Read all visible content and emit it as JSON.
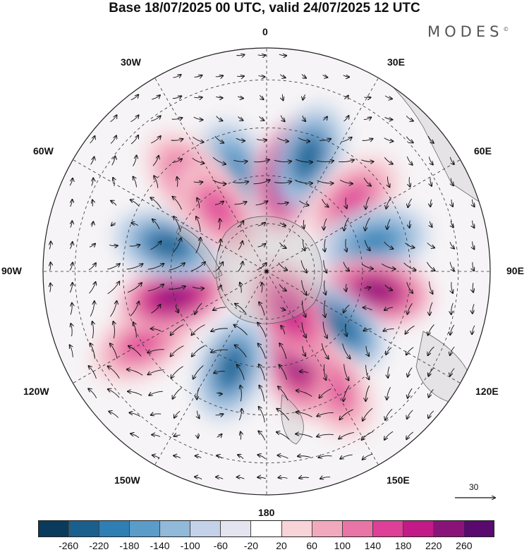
{
  "title": "Base 18/07/2025 00 UTC, valid 24/07/2025 12 UTC",
  "logo": "MODES",
  "logo_mark": "©",
  "longitude_labels": [
    "0",
    "30E",
    "60E",
    "90E",
    "120E",
    "150E",
    "180",
    "150W",
    "120W",
    "90W",
    "60W",
    "30W"
  ],
  "reference_vector": {
    "label": "30"
  },
  "colorbar": {
    "ticks": [
      "-260",
      "-220",
      "-180",
      "-140",
      "-100",
      "-60",
      "-20",
      "20",
      "60",
      "100",
      "140",
      "180",
      "220",
      "260"
    ],
    "colors": [
      "#0a3a5c",
      "#1b5f8c",
      "#2f7fb5",
      "#5b9cc9",
      "#90b9da",
      "#c3d2e8",
      "#e4e4f0",
      "#ffffff",
      "#f8d3d8",
      "#f3a9bd",
      "#e974a6",
      "#de3f97",
      "#c21a86",
      "#8a137a",
      "#5a0a6e"
    ]
  },
  "anomaly_centers": [
    {
      "lon": -18,
      "lat": -58,
      "value": -200
    },
    {
      "lon": 12,
      "lat": -60,
      "value": 240
    },
    {
      "lon": 20,
      "lat": -52,
      "value": -230
    },
    {
      "lon": 50,
      "lat": -55,
      "value": 160
    },
    {
      "lon": 75,
      "lat": -55,
      "value": -190
    },
    {
      "lon": 100,
      "lat": -55,
      "value": 230
    },
    {
      "lon": 128,
      "lat": -62,
      "value": -240
    },
    {
      "lon": 150,
      "lat": -48,
      "value": 150
    },
    {
      "lon": 162,
      "lat": -60,
      "value": 230
    },
    {
      "lon": 150,
      "lat": -75,
      "value": 200
    },
    {
      "lon": -160,
      "lat": -58,
      "value": -230
    },
    {
      "lon": -120,
      "lat": -45,
      "value": 160
    },
    {
      "lon": -105,
      "lat": -60,
      "value": 240
    },
    {
      "lon": -75,
      "lat": -58,
      "value": -230
    },
    {
      "lon": -40,
      "lat": -52,
      "value": 130
    },
    {
      "lon": -38,
      "lat": -65,
      "value": 150
    }
  ]
}
